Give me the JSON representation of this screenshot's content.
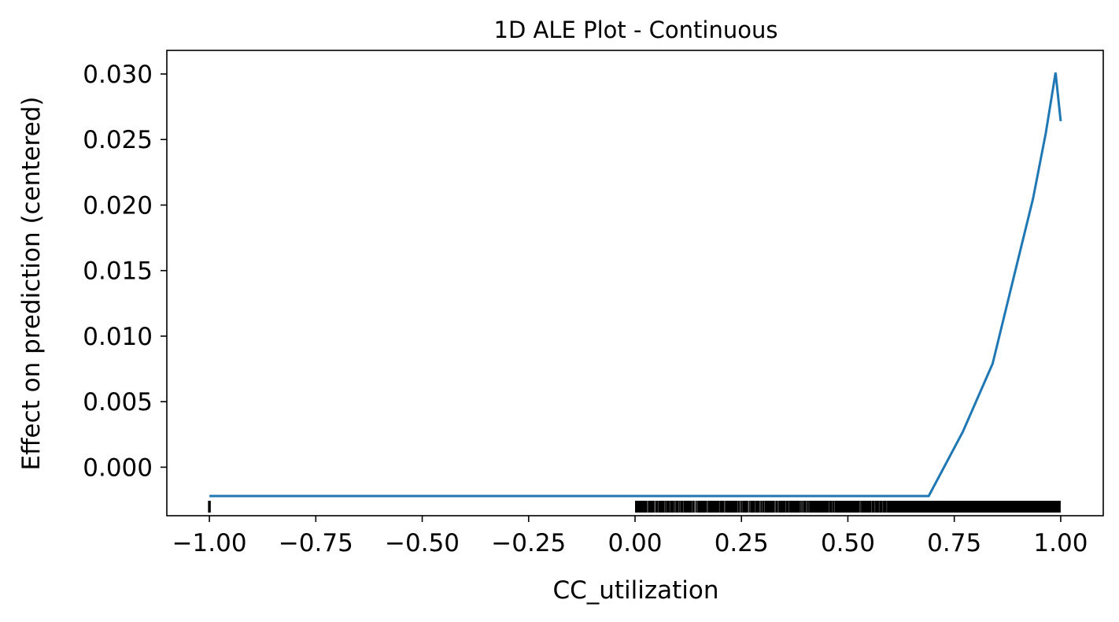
{
  "chart_data": {
    "type": "line",
    "title": "1D ALE Plot - Continuous",
    "xlabel": "CC_utilization",
    "ylabel": "Effect on prediction (centered)",
    "xlim": [
      -1.1,
      1.1
    ],
    "ylim": [
      -0.0037,
      0.0318
    ],
    "x_ticks": [
      -1.0,
      -0.75,
      -0.5,
      -0.25,
      0.0,
      0.25,
      0.5,
      0.75,
      1.0
    ],
    "x_tick_labels": [
      "−1.00",
      "−0.75",
      "−0.50",
      "−0.25",
      "0.00",
      "0.25",
      "0.50",
      "0.75",
      "1.00"
    ],
    "y_ticks": [
      0.0,
      0.005,
      0.01,
      0.015,
      0.02,
      0.025,
      0.03
    ],
    "y_tick_labels": [
      "0.000",
      "0.005",
      "0.010",
      "0.015",
      "0.020",
      "0.025",
      "0.030"
    ],
    "grid": false,
    "line_color": "#1f77b4",
    "rug_color": "#000000",
    "series": [
      {
        "x": [
          -1.0,
          0.69,
          0.77,
          0.84,
          0.895,
          0.935,
          0.965,
          0.988,
          1.0
        ],
        "y": [
          -0.0022,
          -0.0022,
          0.0027,
          0.0079,
          0.0152,
          0.0205,
          0.0255,
          0.0301,
          0.0264
        ]
      }
    ],
    "rug": {
      "x_min": 0.0,
      "x_max": 1.0,
      "isolated_x": [
        -1.0
      ]
    }
  }
}
